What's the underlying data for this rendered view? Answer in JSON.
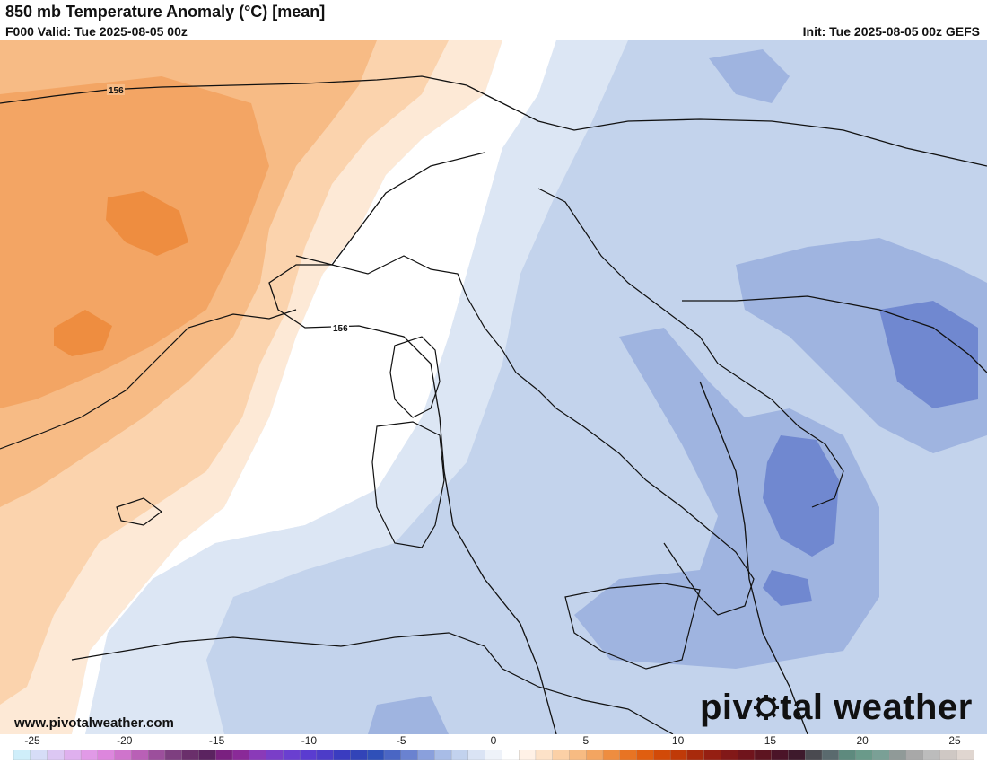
{
  "header": {
    "title": "850 mb Temperature Anomaly (°C) [mean]",
    "valid": "F000 Valid: Tue 2025-08-05 00z",
    "init": "Init: Tue 2025-08-05 00z GEFS"
  },
  "map": {
    "contour_labels": [
      "156",
      "156"
    ]
  },
  "footer": {
    "url": "www.pivotalweather.com",
    "logo_before": "piv",
    "logo_after": "tal weather"
  },
  "colorbar": {
    "tick_labels": [
      "-25",
      "-20",
      "-15",
      "-10",
      "-5",
      "0",
      "5",
      "10",
      "15",
      "20",
      "25"
    ],
    "colors": [
      "#cfeefa",
      "#d6ddf7",
      "#dcc7f3",
      "#dfb0ee",
      "#e19ae7",
      "#dd86dd",
      "#cf74cc",
      "#b960b6",
      "#9c4f9c",
      "#7e3f80",
      "#6a2f6b",
      "#5b2360",
      "#7a2080",
      "#8a2a98",
      "#8a3ab8",
      "#7a3ec8",
      "#6a3fd0",
      "#5a3cd0",
      "#4d3cc8",
      "#3a3cc0",
      "#3244b8",
      "#2f50b8",
      "#4a66c4",
      "#6a82d0",
      "#8aa0dc",
      "#a8bce6",
      "#c2d2ee",
      "#dae3f4",
      "#eef2f9",
      "#ffffff",
      "#fff1e6",
      "#fde2c8",
      "#fbd0a6",
      "#f7bb82",
      "#f3a561",
      "#ee8d40",
      "#e87423",
      "#e05e10",
      "#d24a08",
      "#c03a08",
      "#a82a0c",
      "#951f12",
      "#821818",
      "#70141c",
      "#5d1420",
      "#4b1428",
      "#3e1a2c",
      "#4a4a50",
      "#5a6a6e",
      "#5e8a7e",
      "#6a9a8a",
      "#7aa096",
      "#909a98",
      "#a8a8a8",
      "#bcbcbc",
      "#cfc8c4",
      "#e0d6d0"
    ]
  }
}
